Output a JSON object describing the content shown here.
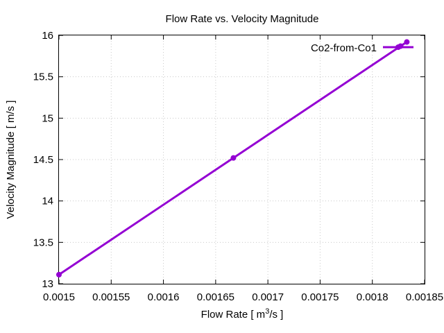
{
  "chart_data": {
    "type": "line",
    "title": "Flow Rate vs. Velocity Magnitude",
    "xlabel_main": "Flow Rate [ m",
    "xlabel_sup": "3",
    "xlabel_end": "/s ]",
    "ylabel": "Velocity Magnitude [ m/s ]",
    "xlim": [
      0.0015,
      0.00185
    ],
    "ylim": [
      13,
      16
    ],
    "x_ticks": [
      0.0015,
      0.00155,
      0.0016,
      0.00165,
      0.0017,
      0.00175,
      0.0018,
      0.00185
    ],
    "x_tick_labels": [
      "0.0015",
      "0.00155",
      "0.0016",
      "0.00165",
      "0.0017",
      "0.00175",
      "0.0018",
      "0.00185"
    ],
    "y_ticks": [
      13,
      13.5,
      14,
      14.5,
      15,
      15.5,
      16
    ],
    "y_tick_labels": [
      "13",
      "13.5",
      "14",
      "14.5",
      "15",
      "15.5",
      "16"
    ],
    "grid": true,
    "legend_position": "top-right",
    "series": [
      {
        "name": "Co2-from-Co1",
        "color": "#9400d3",
        "x": [
          0.0015,
          0.001667,
          0.001827,
          0.001833
        ],
        "y": [
          13.11,
          14.52,
          15.87,
          15.92
        ]
      }
    ]
  }
}
